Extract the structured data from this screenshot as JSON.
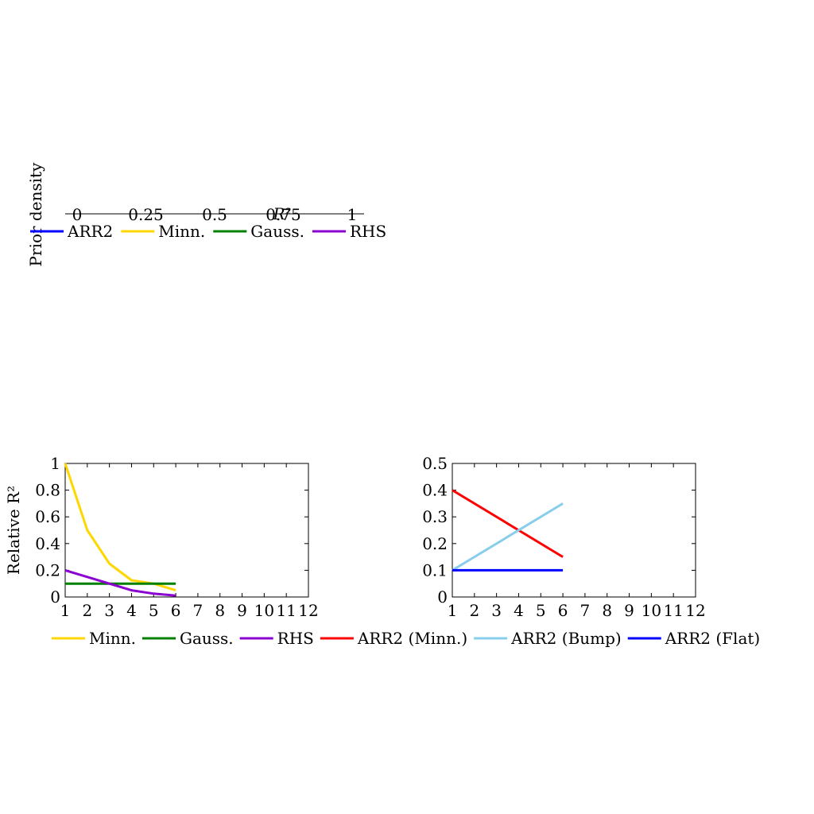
{
  "chart_data": [
    {
      "type": "line",
      "title": "",
      "xlabel": "R²",
      "ylabel": "Prior density",
      "xticks": [
        "0",
        "0.25",
        "0.5",
        "0.75",
        "1"
      ],
      "xlim": [
        0,
        1
      ],
      "legend_position": "below",
      "series": [
        {
          "name": "ARR2",
          "color": "#0000ff",
          "values": []
        },
        {
          "name": "Minn.",
          "color": "#ffd700",
          "values": []
        },
        {
          "name": "Gauss.",
          "color": "#008000",
          "values": []
        },
        {
          "name": "RHS",
          "color": "#8b00d0",
          "values": []
        }
      ]
    },
    {
      "type": "line",
      "title": "",
      "xlabel": "",
      "ylabel": "Relative R²",
      "xlim": [
        1,
        12
      ],
      "ylim": [
        0,
        1
      ],
      "xticks": [
        "1",
        "2",
        "3",
        "4",
        "5",
        "6",
        "7",
        "8",
        "9",
        "10",
        "11",
        "12"
      ],
      "yticks": [
        "0",
        "0.2",
        "0.4",
        "0.6",
        "0.8",
        "1"
      ],
      "grid": false,
      "legend_position": "below",
      "series": [
        {
          "name": "Minn.",
          "color": "#ffd700",
          "x": [
            1,
            2,
            3,
            4,
            5,
            6
          ],
          "values": [
            1,
            0.5,
            0.25,
            0.125,
            0.1,
            0.05
          ]
        },
        {
          "name": "Gauss.",
          "color": "#008000",
          "x": [
            1,
            2,
            3,
            4,
            5,
            6
          ],
          "values": [
            0.1,
            0.1,
            0.1,
            0.1,
            0.1,
            0.1
          ]
        },
        {
          "name": "RHS",
          "color": "#8b00d0",
          "x": [
            1,
            2,
            3,
            4,
            5,
            6
          ],
          "values": [
            0.2,
            0.15,
            0.1,
            0.05,
            0.025,
            0.01
          ]
        }
      ]
    },
    {
      "type": "line",
      "title": "",
      "xlabel": "",
      "ylabel": "",
      "xlim": [
        1,
        12
      ],
      "ylim": [
        0,
        0.5
      ],
      "xticks": [
        "1",
        "2",
        "3",
        "4",
        "5",
        "6",
        "7",
        "8",
        "9",
        "10",
        "11",
        "12"
      ],
      "yticks": [
        "0",
        "0.1",
        "0.2",
        "0.3",
        "0.4",
        "0.5"
      ],
      "grid": false,
      "legend_position": "below",
      "series": [
        {
          "name": "ARR2 (Minn.)",
          "color": "#ff0000",
          "x": [
            1,
            6
          ],
          "values": [
            0.4,
            0.15
          ]
        },
        {
          "name": "ARR2 (Bump)",
          "color": "#87ceeb",
          "x": [
            1,
            6
          ],
          "values": [
            0.1,
            0.35
          ]
        },
        {
          "name": "ARR2 (Flat)",
          "color": "#0000ff",
          "x": [
            1,
            6
          ],
          "values": [
            0.1,
            0.1
          ]
        }
      ]
    }
  ]
}
